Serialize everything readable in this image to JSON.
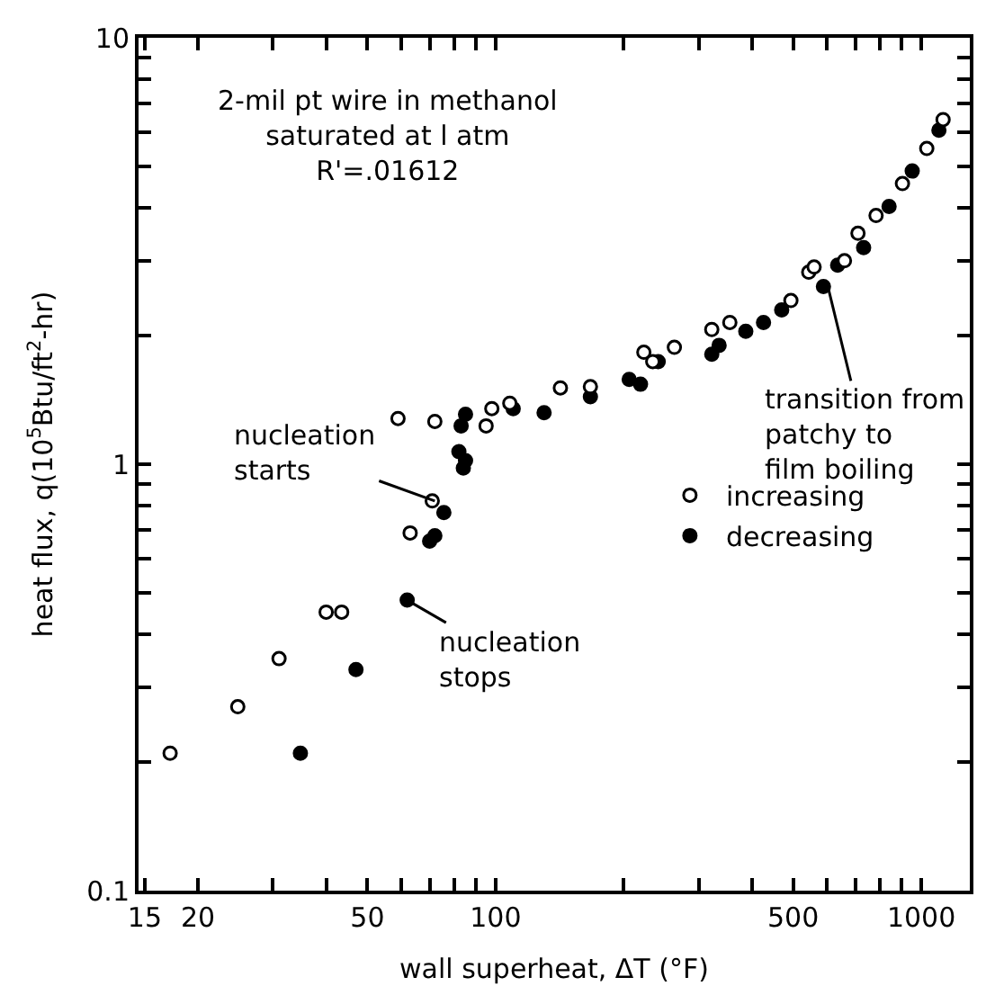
{
  "chart_data": {
    "type": "scatter",
    "xlabel": "wall superheat, ΔT (°F)",
    "ylabel": "heat flux, q(10$^{5}$Btu/ft$^{2}$-hr)",
    "log": "xy",
    "legend": "right",
    "xlim": [
      14.5,
      1300
    ],
    "ylim": [
      0.1,
      10
    ],
    "xticks": [
      15,
      20,
      {
        "value": 30,
        "label": null
      },
      {
        "value": 40,
        "label": null
      },
      50,
      {
        "value": 60,
        "label": null
      },
      {
        "value": 70,
        "label": null
      },
      {
        "value": 80,
        "label": null
      },
      {
        "value": 90,
        "label": null
      },
      100,
      {
        "value": 200,
        "label": null
      },
      {
        "value": 300,
        "label": null
      },
      {
        "value": 400,
        "label": null
      },
      500,
      {
        "value": 600,
        "label": null
      },
      {
        "value": 700,
        "label": null
      },
      {
        "value": 800,
        "label": null
      },
      {
        "value": 900,
        "label": null
      },
      1000
    ],
    "yticks": [
      0.1,
      {
        "value": 0.2,
        "label": null
      },
      {
        "value": 0.3,
        "label": null
      },
      {
        "value": 0.4,
        "label": null
      },
      {
        "value": 0.5,
        "label": null
      },
      {
        "value": 0.6,
        "label": null
      },
      {
        "value": 0.7,
        "label": null
      },
      {
        "value": 0.8,
        "label": null
      },
      {
        "value": 0.9,
        "label": null
      },
      1,
      {
        "value": 2,
        "label": null
      },
      {
        "value": 3,
        "label": null
      },
      {
        "value": 4,
        "label": null
      },
      {
        "value": 5,
        "label": null
      },
      {
        "value": 6,
        "label": null
      },
      {
        "value": 7,
        "label": null
      },
      {
        "value": 8,
        "label": null
      },
      {
        "value": 9,
        "label": null
      },
      10
    ],
    "series": [
      {
        "name": "increasing",
        "color": "#000000",
        "marker": "circle-open",
        "x": [
          17.2,
          24.8,
          31,
          40,
          43.5,
          59,
          63,
          71,
          72,
          95,
          98,
          108,
          142,
          167,
          223,
          234,
          263,
          322,
          355,
          494,
          544,
          560,
          660,
          710,
          783,
          903,
          1030,
          1125
        ],
        "values": [
          0.21,
          0.27,
          0.35,
          0.45,
          0.45,
          1.28,
          0.69,
          0.82,
          1.26,
          1.23,
          1.35,
          1.39,
          1.51,
          1.52,
          1.83,
          1.74,
          1.88,
          2.07,
          2.15,
          2.42,
          2.82,
          2.9,
          3.0,
          3.48,
          3.83,
          4.55,
          5.5,
          6.43
        ]
      },
      {
        "name": "decreasing",
        "color": "#000000",
        "marker": "circle",
        "x": [
          34.8,
          47,
          62,
          70,
          72,
          75.6,
          84,
          85,
          82,
          83,
          85,
          110,
          130,
          167,
          206,
          219,
          241,
          322,
          335,
          387,
          426,
          470,
          589,
          636,
          732,
          840,
          952,
          1100
        ],
        "values": [
          0.21,
          0.33,
          0.48,
          0.66,
          0.68,
          0.77,
          0.98,
          1.02,
          1.07,
          1.23,
          1.31,
          1.35,
          1.32,
          1.44,
          1.58,
          1.54,
          1.74,
          1.81,
          1.9,
          2.05,
          2.15,
          2.3,
          2.61,
          2.93,
          3.22,
          4.02,
          4.87,
          6.07
        ]
      }
    ],
    "annotations": [
      "2-mil pt wire in methanol\nsaturated at l atm\nR'=.01612",
      {
        "text": "nucleation\nstarts",
        "x": 72,
        "y": 0.82
      },
      {
        "text": "nucleation\nstops",
        "x": 62,
        "y": 0.48
      },
      {
        "text": "transition from\npatchy to\nfilm boiling",
        "x": 604,
        "y": 2.6
      }
    ]
  }
}
